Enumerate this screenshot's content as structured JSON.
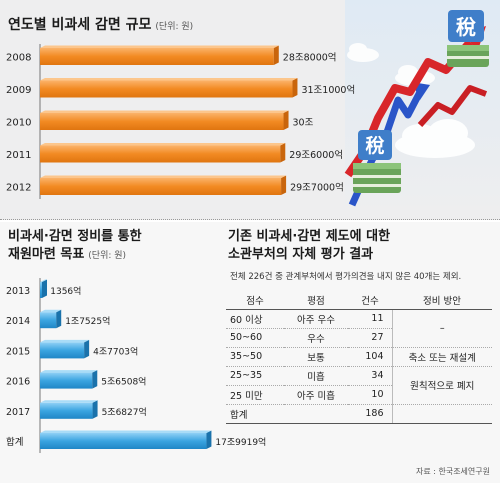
{
  "chart_data": [
    {
      "type": "bar",
      "orientation": "horizontal",
      "title": "연도별 비과세  감면 규모",
      "unit": "(단위: 원)",
      "categories": [
        "2008",
        "2009",
        "2010",
        "2011",
        "2012"
      ],
      "values": [
        28.8,
        31.1,
        30.0,
        29.6,
        29.7
      ],
      "value_labels": [
        "28조8000억",
        "31조1000억",
        "30조",
        "29조6000억",
        "29조7000억"
      ],
      "value_unit": "조 원",
      "xlim": [
        0,
        34
      ],
      "color": "#f28a22"
    },
    {
      "type": "bar",
      "orientation": "horizontal",
      "title_lines": [
        "비과세·감면 정비를 통한",
        "재원마련 목표"
      ],
      "unit": "(단위: 원)",
      "categories": [
        "2013",
        "2014",
        "2015",
        "2016",
        "2017",
        "합계"
      ],
      "values": [
        0.1356,
        1.7525,
        4.7703,
        5.6508,
        5.6827,
        17.9919
      ],
      "value_labels": [
        "1356억",
        "1조7525억",
        "4조7703억",
        "5조6508억",
        "5조6827억",
        "17조9919억"
      ],
      "value_unit": "조 원",
      "xlim": [
        0,
        20
      ],
      "color": "#3aa4e0"
    }
  ],
  "eval_table": {
    "title_lines": [
      "기존 비과세·감면 제도에 대한",
      "소관부처의 자체 평가 결과"
    ],
    "note": "전체 226건 중 관계부처에서 평가의견을 내지 않은 40개는 제외.",
    "headers": [
      "점수",
      "평점",
      "건수",
      "정비 방안"
    ],
    "rows": [
      {
        "score": "60 이상",
        "grade": "아주 우수",
        "count": "11"
      },
      {
        "score": "50~60",
        "grade": "우수",
        "count": "27"
      },
      {
        "score": "35~50",
        "grade": "보통",
        "count": "104"
      },
      {
        "score": "25~35",
        "grade": "미흡",
        "count": "34"
      },
      {
        "score": "25 미만",
        "grade": "아주 미흡",
        "count": "10"
      }
    ],
    "plans": [
      "–",
      "축소 또는 재설계",
      "원칙적으로 폐지"
    ],
    "total_label": "합계",
    "total_count": "186"
  },
  "illustration": {
    "tax_char": "稅",
    "arrow_colors": [
      "#d8262a",
      "#2a55c8"
    ]
  },
  "source": "자료 : 한국조세연구원"
}
